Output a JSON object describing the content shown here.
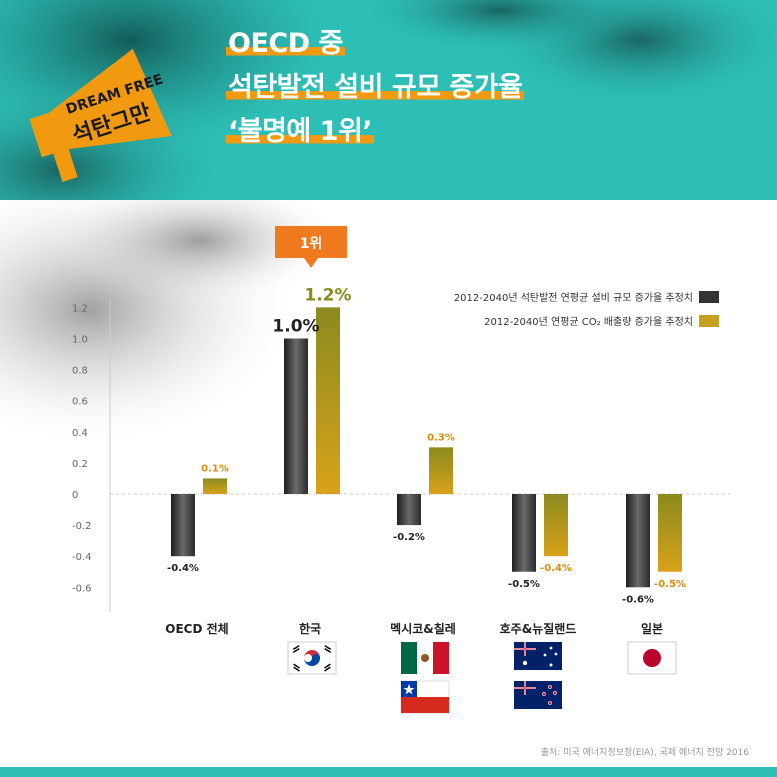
{
  "header": {
    "title_lines": [
      "OECD 중",
      "석탄발전 설비 규모 증가율",
      "‘불명예 1위’"
    ],
    "logo_lines": [
      "DREAM FREE",
      "석탄그만"
    ],
    "colors": {
      "teal": "#2dbfb6",
      "orange": "#f29a0f",
      "dark": "#333333",
      "gold": "#c4a020"
    }
  },
  "badge": {
    "label": "1위"
  },
  "chart_data": {
    "type": "bar",
    "categories": [
      "OECD 전체",
      "한국",
      "멕시코&칠레",
      "호주&뉴질랜드",
      "일본"
    ],
    "series": [
      {
        "name": "2012-2040년 석탄발전 연평균 설비 규모 증가율 추정치",
        "values": [
          -0.4,
          1.0,
          -0.2,
          -0.5,
          -0.6
        ],
        "labels": [
          "-0.4%",
          "1.0%",
          "-0.2%",
          "-0.5%",
          "-0.6%"
        ],
        "color": "#333333"
      },
      {
        "name": "2012-2040년 연평균 CO₂ 배출량 증가율 추정치",
        "values": [
          0.1,
          1.2,
          0.3,
          -0.4,
          -0.5
        ],
        "labels": [
          "0.1%",
          "1.2%",
          "0.3%",
          "-0.4%",
          "-0.5%"
        ],
        "color": "#c4a020"
      }
    ],
    "yticks": [
      "1.2",
      "1.0",
      "0.8",
      "0.6",
      "0.4",
      "0.2",
      "0",
      "-0.2",
      "-0.4",
      "-0.6"
    ],
    "ylim": [
      -0.7,
      1.3
    ],
    "grid": false,
    "legend": "top-right"
  },
  "flags": [
    {
      "category": "한국",
      "icons": [
        "korea-flag"
      ]
    },
    {
      "category": "멕시코&칠레",
      "icons": [
        "mexico-flag",
        "chile-flag"
      ]
    },
    {
      "category": "호주&뉴질랜드",
      "icons": [
        "australia-flag",
        "new-zealand-flag"
      ]
    },
    {
      "category": "일본",
      "icons": [
        "japan-flag"
      ]
    }
  ],
  "source": "출처: 미국 에너지정보청(EIA), 국제 에너지 전망 2016"
}
